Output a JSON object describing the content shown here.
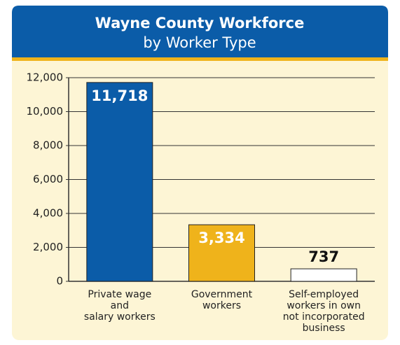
{
  "chart_data": {
    "type": "bar",
    "title": "Wayne County Workforce",
    "subtitle": "by Worker Type",
    "categories": [
      [
        "Private wage",
        "and",
        "salary workers"
      ],
      [
        "Government",
        "workers"
      ],
      [
        "Self-employed",
        "workers in own",
        "not incorporated",
        "business"
      ]
    ],
    "values": [
      11718,
      3334,
      737
    ],
    "value_labels": [
      "11,718",
      "3,334",
      "737"
    ],
    "colors": [
      "#0b5ca8",
      "#efb31b",
      "#ffffff"
    ],
    "ylim": [
      0,
      12000
    ],
    "yticks": [
      0,
      {
        "value": 2000,
        "label": "2,000"
      },
      {
        "value": 4000,
        "label": "4,000"
      },
      {
        "value": 6000,
        "label": "6,000"
      },
      {
        "value": 8000,
        "label": "8,000"
      },
      {
        "value": 10000,
        "label": "10,000"
      },
      {
        "value": 12000,
        "label": "12,000"
      }
    ],
    "grid": true
  }
}
